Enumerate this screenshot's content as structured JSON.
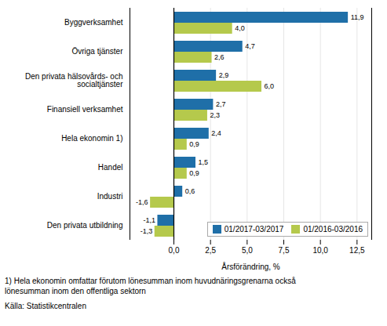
{
  "chart_data": {
    "type": "bar",
    "orientation": "horizontal",
    "categories": [
      "Den privata utbildning",
      "Industri",
      "Handel",
      "Hela ekonomin 1)",
      "Finansiell verksamhet",
      "Den privata hälsovårds- och\nsocialtjänster",
      "Övriga tjänster",
      "Byggverksamhet"
    ],
    "series": [
      {
        "name": "01/2017-03/2017",
        "color": "#1F6FA8",
        "values": [
          -1.1,
          0.6,
          1.5,
          2.4,
          2.7,
          2.9,
          4.7,
          11.9
        ],
        "value_labels": [
          "-1,1",
          "0,6",
          "1,5",
          "2,4",
          "2,7",
          "2,9",
          "4,7",
          "11,9"
        ]
      },
      {
        "name": "01/2016-03/2016",
        "color": "#B5C94C",
        "values": [
          -1.3,
          -1.6,
          0.9,
          0.9,
          2.3,
          6.0,
          2.6,
          4.0
        ],
        "value_labels": [
          "-1,3",
          "-1,6",
          "0,9",
          "0,9",
          "2,3",
          "6,0",
          "2,6",
          "4,0"
        ]
      }
    ],
    "xlabel": "Årsförändring, %",
    "xlim": [
      -3.0,
      13.5
    ],
    "xticks": [
      {
        "value": 0.0,
        "label": "0,0"
      },
      {
        "value": 2.5,
        "label": "2,5"
      },
      {
        "value": 5.0,
        "label": "5,0"
      },
      {
        "value": 7.5,
        "label": "7,5"
      },
      {
        "value": 10.0,
        "label": "10,0"
      },
      {
        "value": 12.5,
        "label": "12,5"
      }
    ],
    "grid": true,
    "legend": "lower right",
    "data_labels": true,
    "annotations": [
      "1) Hela ekonomin omfattar förutom lönesumman inom huvudnäringsgrenarna också",
      "lönesumman inom den offentliga sektorn",
      "Källa: Statistikcentralen"
    ]
  }
}
